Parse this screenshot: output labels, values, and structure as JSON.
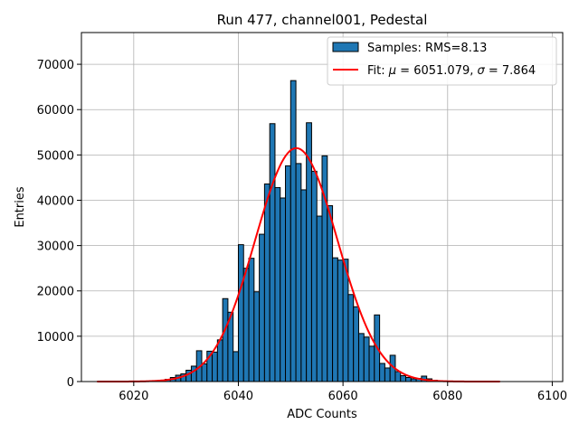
{
  "chart_data": {
    "type": "bar",
    "title": "Run 477, channel001, Pedestal",
    "xlabel": "ADC Counts",
    "ylabel": "Entries",
    "xlim": [
      6010,
      6102
    ],
    "ylim": [
      0,
      77000
    ],
    "xticks": [
      6020,
      6040,
      6060,
      6080,
      6100
    ],
    "yticks": [
      0,
      10000,
      20000,
      30000,
      40000,
      50000,
      60000,
      70000
    ],
    "grid": true,
    "legend_position": "top-right",
    "bin_width": 1,
    "histogram": {
      "name": "Samples: RMS=8.13",
      "color": "#1f77b4",
      "edgecolor": "#000000",
      "bin_starts": [
        6026,
        6027,
        6028,
        6029,
        6030,
        6031,
        6032,
        6033,
        6034,
        6035,
        6036,
        6037,
        6038,
        6039,
        6040,
        6041,
        6042,
        6043,
        6044,
        6045,
        6046,
        6047,
        6048,
        6049,
        6050,
        6051,
        6052,
        6053,
        6054,
        6055,
        6056,
        6057,
        6058,
        6059,
        6060,
        6061,
        6062,
        6063,
        6064,
        6065,
        6066,
        6067,
        6068,
        6069,
        6070,
        6071,
        6072,
        6073,
        6074,
        6075,
        6076,
        6077,
        6078
      ],
      "counts": [
        500,
        900,
        1400,
        1700,
        2500,
        3400,
        6800,
        3900,
        6700,
        6500,
        9200,
        18300,
        15300,
        6600,
        30200,
        25000,
        27200,
        19800,
        32500,
        43600,
        56900,
        42800,
        40500,
        47600,
        66400,
        48100,
        42300,
        57100,
        46400,
        36500,
        49800,
        38800,
        27300,
        26800,
        27000,
        19200,
        16500,
        10600,
        9800,
        7800,
        14700,
        4000,
        3000,
        5800,
        2200,
        1300,
        900,
        600,
        700,
        1200,
        600,
        300,
        150
      ]
    },
    "fit": {
      "name": "Fit: μ = 6051.079, σ = 7.864",
      "color": "#ff0000",
      "mu": 6051.079,
      "sigma": 7.864,
      "amplitude": 51500,
      "x_range": [
        6013,
        6090
      ]
    },
    "legend": {
      "samples_label": "Samples: RMS=8.13",
      "fit_prefix": "Fit: ",
      "mu_symbol": "μ",
      "mu_text": " = 6051.079, ",
      "sigma_symbol": "σ",
      "sigma_text": " = 7.864"
    }
  }
}
